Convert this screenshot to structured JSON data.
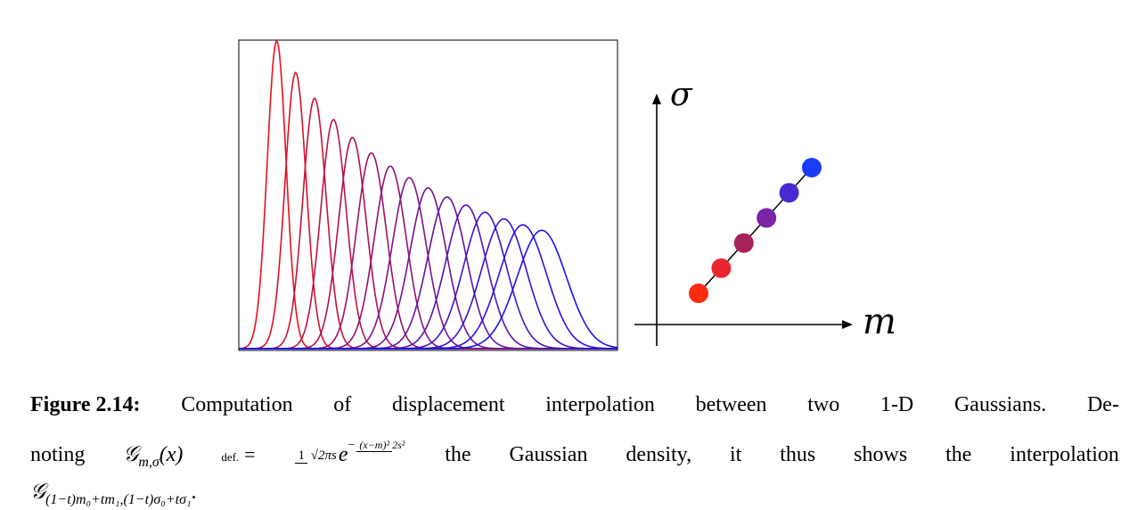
{
  "chart_data": [
    {
      "type": "line",
      "description_units": "density",
      "x_range": [
        0,
        1
      ],
      "n_curves": 15,
      "series_parameters": {
        "m_start": 0.1,
        "m_end": 0.8,
        "sigma_start": 0.025,
        "sigma_end": 0.065
      },
      "color_start": "#e8111a",
      "color_end": "#1a12ee",
      "frame": true
    },
    {
      "type": "scatter",
      "xlabel": "m",
      "ylabel": "σ",
      "points": [
        {
          "m": 0.0,
          "sigma": 0.0,
          "color": "#ff2a12"
        },
        {
          "m": 0.2,
          "sigma": 0.2,
          "color": "#e82630"
        },
        {
          "m": 0.4,
          "sigma": 0.4,
          "color": "#a8225a"
        },
        {
          "m": 0.6,
          "sigma": 0.6,
          "color": "#7a24a8"
        },
        {
          "m": 0.8,
          "sigma": 0.8,
          "color": "#4a2ad0"
        },
        {
          "m": 1.0,
          "sigma": 1.0,
          "color": "#1a3cf8"
        }
      ],
      "connected_by_line": true
    }
  ],
  "caption": {
    "label": "Figure 2.14:",
    "line1_words": [
      "Computation",
      "of",
      "displacement",
      "interpolation",
      "between",
      "two",
      "1-D",
      "Gaussians.",
      "De-"
    ],
    "line2_lead": "noting",
    "defeq_top": "def.",
    "defeq_sym": "=",
    "frac_num": "1",
    "frac_den": "√2πs",
    "exp_base": "e",
    "exp_sign": "−",
    "exp_num": "(x−m)²",
    "exp_den": "2s²",
    "line2_words": [
      "the",
      "Gaussian",
      "density,",
      "it",
      "thus",
      "shows",
      "the",
      "interpolation"
    ],
    "gaussian_symbol": "𝒢",
    "gaussian_sub": "m,σ",
    "gaussian_arg": "(x)",
    "line3_sub": "(1−t)m₀+tm₁,(1−t)σ₀+tσ₁",
    "line3_end": "."
  }
}
